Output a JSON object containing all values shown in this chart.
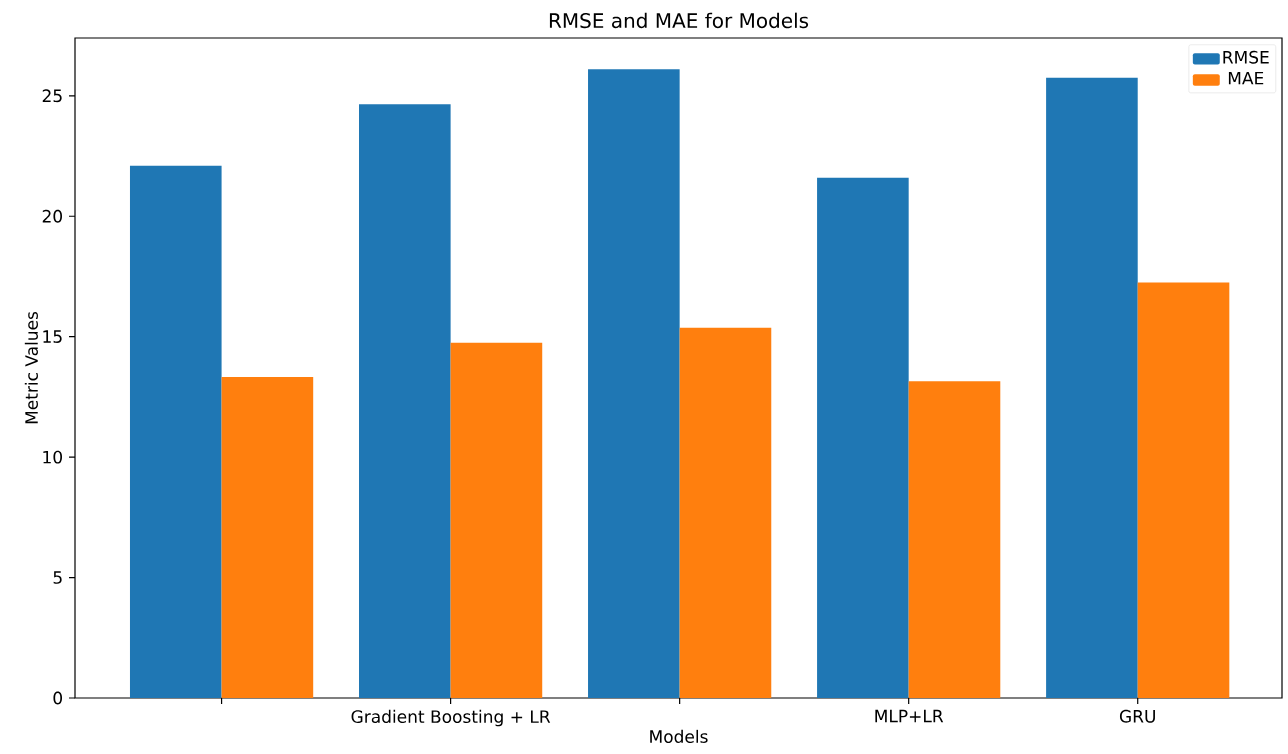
{
  "chart_data": {
    "type": "bar",
    "title": "RMSE and MAE for Models",
    "xlabel": "Models",
    "ylabel": "Metric Values",
    "categories": [
      null,
      "Gradient Boosting + LR",
      null,
      "MLP+LR",
      "GRU"
    ],
    "series": [
      {
        "name": "RMSE",
        "color": "#1f77b4",
        "values": [
          22.1,
          24.65,
          26.1,
          21.6,
          25.75
        ]
      },
      {
        "name": "MAE",
        "color": "#ff7f0e",
        "values": [
          13.33,
          14.75,
          15.37,
          13.15,
          17.25
        ]
      }
    ],
    "ylim": [
      0,
      27.4
    ],
    "yticks": [
      0,
      5,
      10,
      15,
      20,
      25
    ],
    "legend": "top right",
    "grid": false
  }
}
